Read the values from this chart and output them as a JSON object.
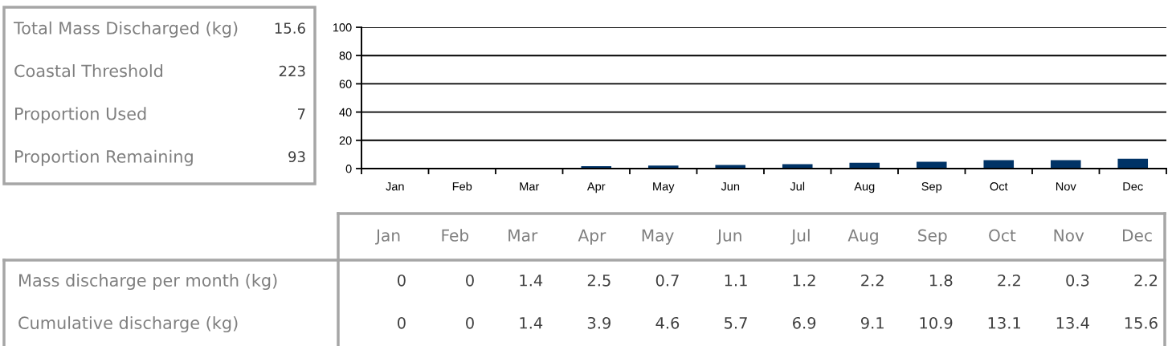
{
  "chart_data": [
    {
      "type": "other",
      "categories": [
        "Total Mass Discharged (kg)",
        "Coastal Threshold",
        "Proportion Used",
        "Proportion Remaining"
      ],
      "values": [
        15.6,
        223,
        7,
        93
      ],
      "data_labels": true
    },
    {
      "type": "bar",
      "categories": [
        "Jan",
        "Feb",
        "Mar",
        "Apr",
        "May",
        "Jun",
        "Jul",
        "Aug",
        "Sep",
        "Oct",
        "Nov",
        "Dec"
      ],
      "values": [
        0,
        0,
        0.6,
        1.7,
        2.1,
        2.6,
        3.1,
        4.1,
        4.9,
        5.9,
        6.0,
        7.0
      ],
      "color": "#003366",
      "ylim": [
        0,
        100
      ],
      "yticks": [
        0,
        20,
        40,
        60,
        80,
        100
      ],
      "grid": "y"
    },
    {
      "type": "other",
      "categories": [
        "Jan",
        "Feb",
        "Mar",
        "Apr",
        "May",
        "Jun",
        "Jul",
        "Aug",
        "Sep",
        "Oct",
        "Nov",
        "Dec"
      ],
      "series": [
        {
          "name": "Mass discharge per month (kg)",
          "values": [
            0,
            0,
            1.4,
            2.5,
            0.7,
            1.1,
            1.2,
            2.2,
            1.8,
            2.2,
            0.3,
            2.2
          ]
        },
        {
          "name": "Cumulative discharge (kg)",
          "values": [
            0,
            0,
            1.4,
            3.9,
            4.6,
            5.7,
            6.9,
            9.1,
            10.9,
            13.1,
            13.4,
            15.6
          ]
        }
      ],
      "data_labels": true
    }
  ]
}
